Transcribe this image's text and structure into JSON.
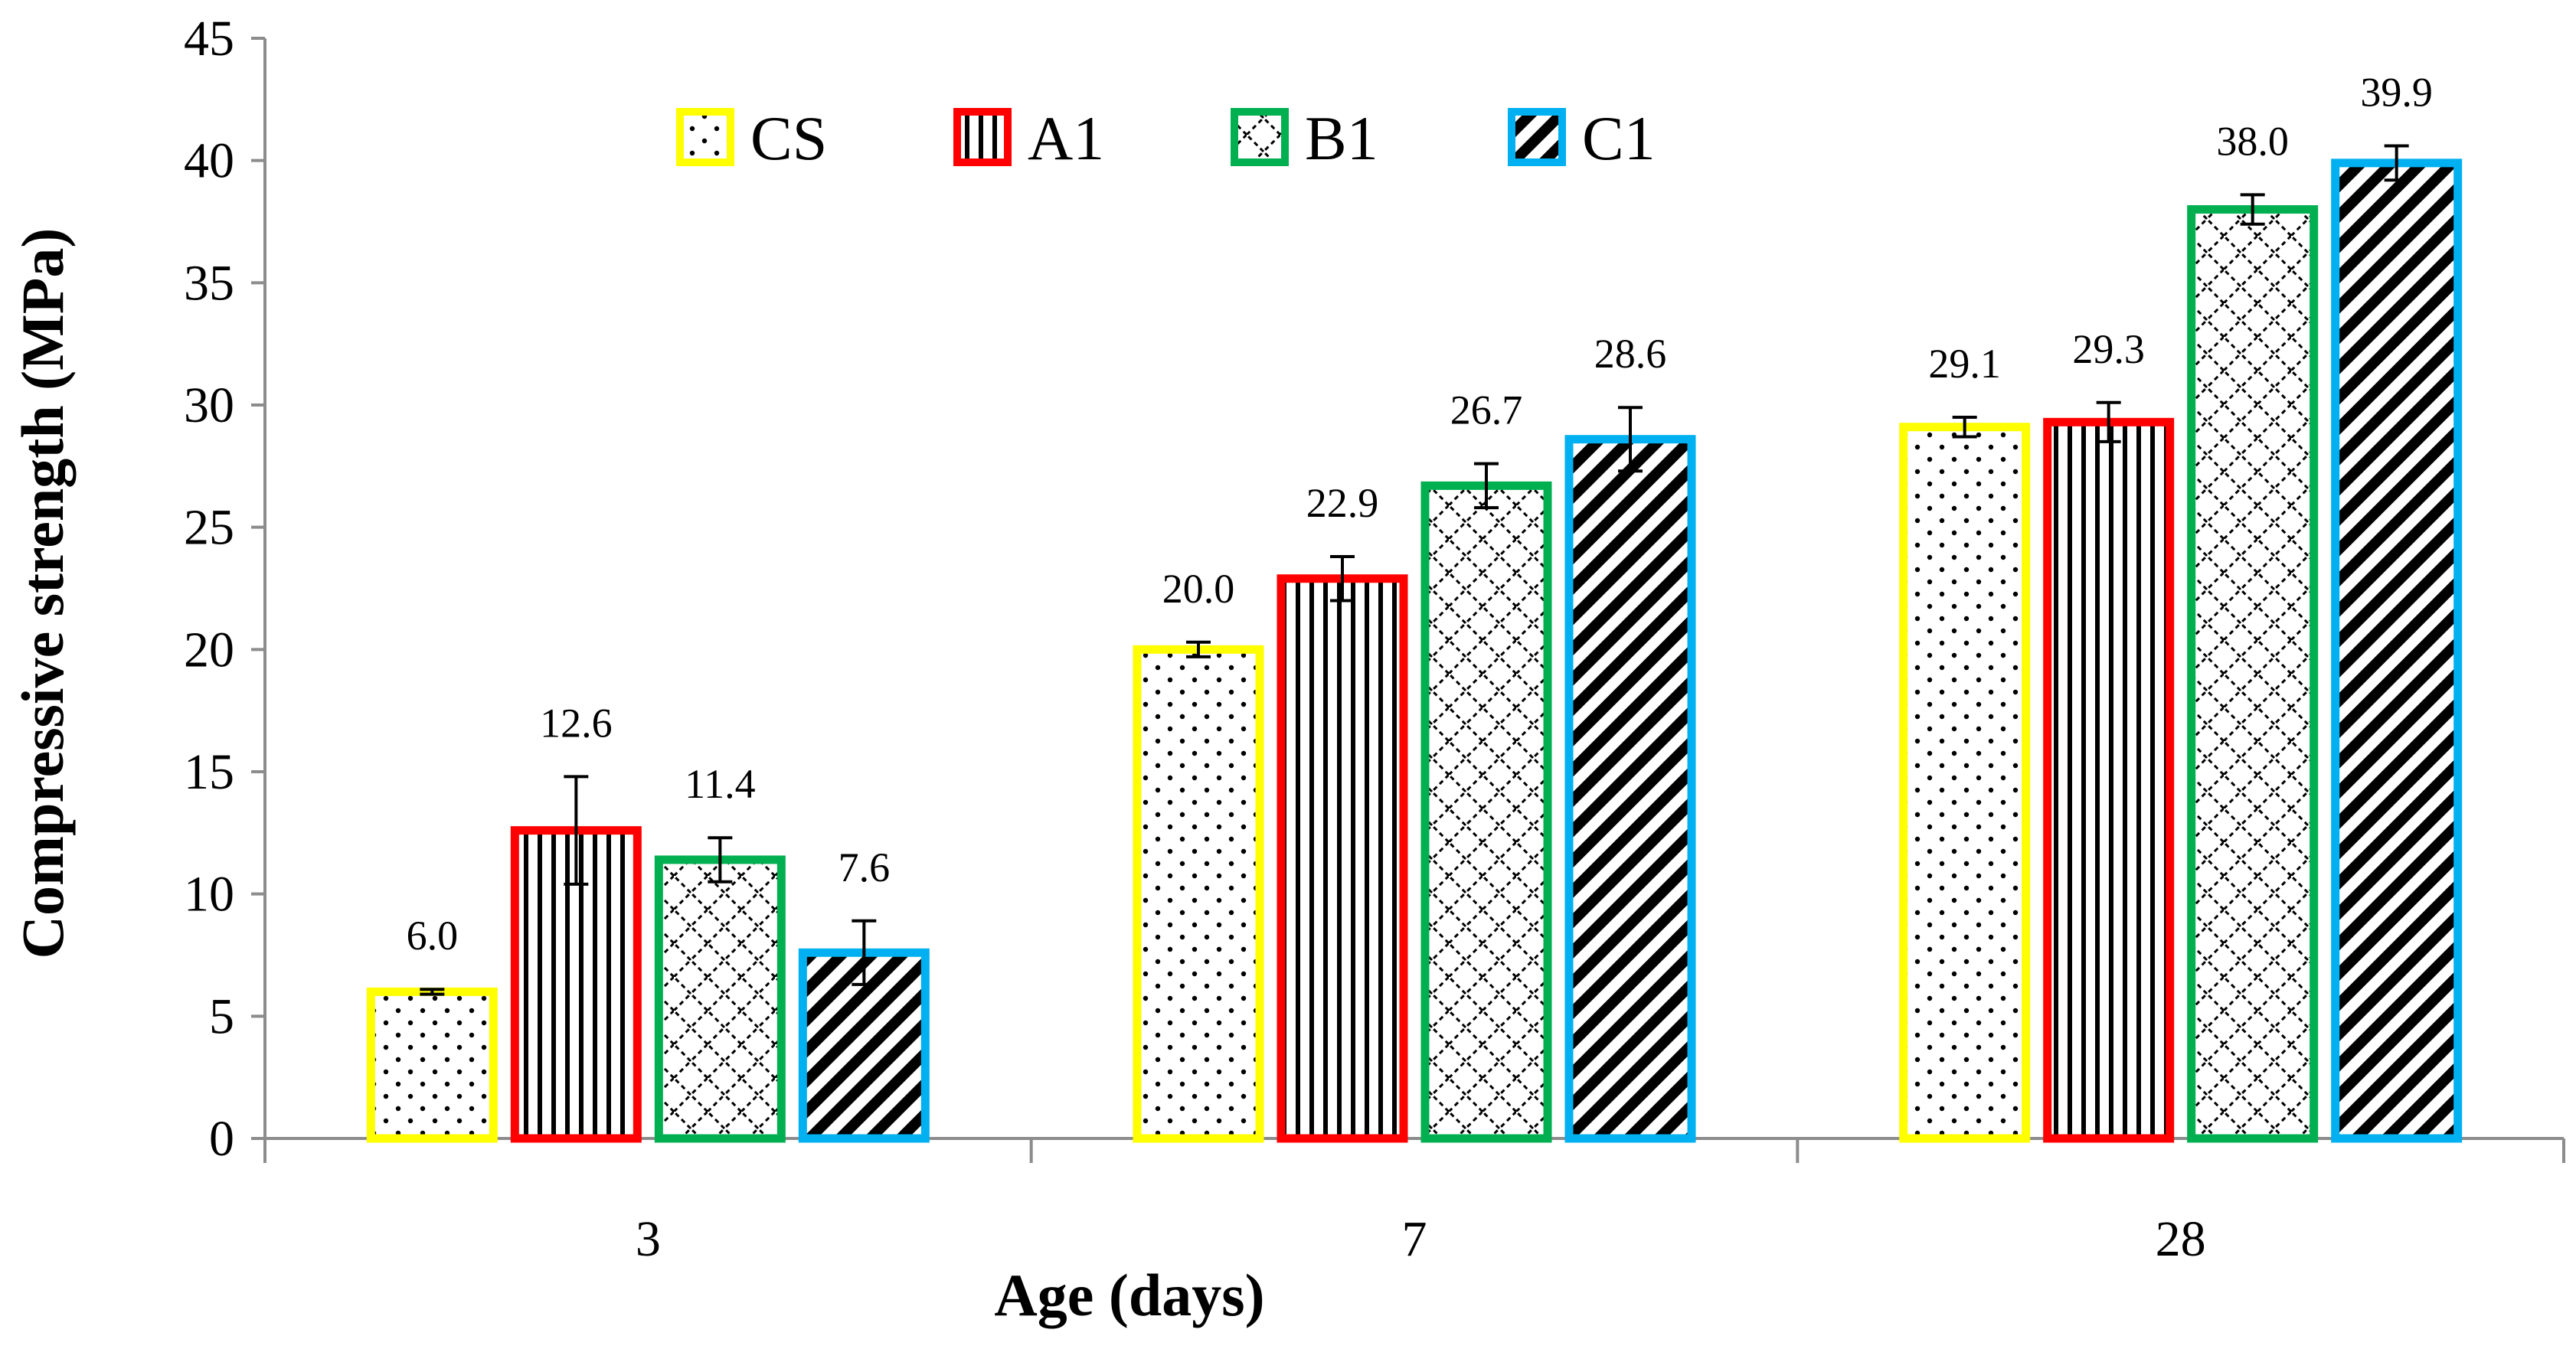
{
  "chart_data": {
    "type": "bar",
    "title": "",
    "xlabel": "Age (days)",
    "ylabel": "Compressive strength (MPa)",
    "ylim": [
      0,
      45
    ],
    "yticks": [
      0,
      5,
      10,
      15,
      20,
      25,
      30,
      35,
      40,
      45
    ],
    "categories": [
      "3",
      "7",
      "28"
    ],
    "grid": false,
    "legend_position": "top-center",
    "series": [
      {
        "name": "CS",
        "color": "#FFFF00",
        "pattern": "dots",
        "values": [
          6.0,
          20.0,
          29.1
        ],
        "labels": [
          "6.0",
          "20.0",
          "29.1"
        ],
        "errors": [
          0.1,
          0.3,
          0.4
        ]
      },
      {
        "name": "A1",
        "color": "#FF0000",
        "pattern": "vertical-lines",
        "values": [
          12.6,
          22.9,
          29.3
        ],
        "labels": [
          "12.6",
          "22.9",
          "29.3"
        ],
        "errors": [
          2.2,
          0.9,
          0.8
        ]
      },
      {
        "name": "B1",
        "color": "#00B050",
        "pattern": "diagonal-weave",
        "values": [
          11.4,
          26.7,
          38.0
        ],
        "labels": [
          "11.4",
          "26.7",
          "38.0"
        ],
        "errors": [
          0.9,
          0.9,
          0.6
        ]
      },
      {
        "name": "C1",
        "color": "#00B0F0",
        "pattern": "diagonal-stripes",
        "values": [
          7.6,
          28.6,
          39.9
        ],
        "labels": [
          "7.6",
          "28.6",
          "39.9"
        ],
        "errors": [
          1.3,
          1.3,
          0.7
        ]
      }
    ]
  }
}
